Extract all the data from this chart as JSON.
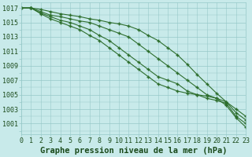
{
  "x": [
    0,
    1,
    2,
    3,
    4,
    5,
    6,
    7,
    8,
    9,
    10,
    11,
    12,
    13,
    14,
    15,
    16,
    17,
    18,
    19,
    20,
    21,
    22,
    23
  ],
  "lines": [
    [
      1017,
      1017,
      1016.8,
      1016.5,
      1016.2,
      1016.0,
      1015.8,
      1015.5,
      1015.3,
      1015.0,
      1014.8,
      1014.5,
      1014.0,
      1013.2,
      1012.5,
      1011.5,
      1010.5,
      1009.2,
      1007.8,
      1006.5,
      1005.2,
      1004.0,
      1003.0,
      1002.0
    ],
    [
      1017,
      1017,
      1016.5,
      1016.0,
      1015.8,
      1015.5,
      1015.2,
      1015.0,
      1014.5,
      1014.0,
      1013.5,
      1013.0,
      1012.0,
      1011.0,
      1010.0,
      1009.0,
      1008.0,
      1007.0,
      1006.0,
      1005.0,
      1004.5,
      1004.0,
      1002.5,
      1001.5
    ],
    [
      1017,
      1017,
      1016.3,
      1015.8,
      1015.3,
      1015.0,
      1014.5,
      1014.0,
      1013.2,
      1012.5,
      1011.5,
      1010.5,
      1009.5,
      1008.5,
      1007.5,
      1007.0,
      1006.5,
      1005.5,
      1005.0,
      1004.5,
      1004.2,
      1003.8,
      1002.0,
      1001.0
    ],
    [
      1017,
      1017,
      1016.2,
      1015.5,
      1015.0,
      1014.5,
      1014.0,
      1013.2,
      1012.5,
      1011.5,
      1010.5,
      1009.5,
      1008.5,
      1007.5,
      1006.5,
      1006.0,
      1005.5,
      1005.2,
      1005.0,
      1004.8,
      1004.5,
      1003.5,
      1001.8,
      1000.5
    ]
  ],
  "line_color": "#2d6e2d",
  "marker": "+",
  "bg_color": "#c8eaea",
  "grid_color": "#96c8c8",
  "ylabel_values": [
    1001,
    1003,
    1005,
    1007,
    1009,
    1011,
    1013,
    1015,
    1017
  ],
  "ylim": [
    999.5,
    1017.8
  ],
  "xlim": [
    0,
    23
  ],
  "xlabel": "Graphe pression niveau de la mer (hPa)",
  "text_color": "#1a4a1a",
  "tick_font_size": 6,
  "label_font_size": 7.5
}
